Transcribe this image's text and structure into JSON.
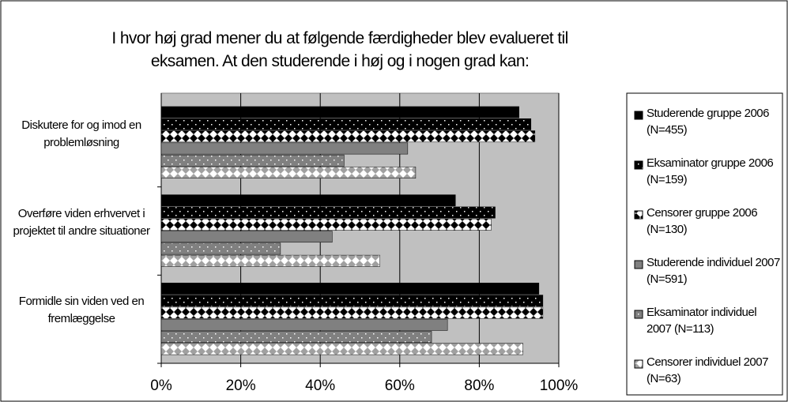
{
  "chart_data": {
    "type": "barh",
    "title": [
      "I hvor høj grad mener du at følgende færdigheder blev evalueret til",
      "eksamen. At den studerende i høj og i nogen grad kan:"
    ],
    "categories": [
      "Diskutere for og imod en problemløsning",
      "Overføre viden erhvervet i projektet til andre situationer",
      "Formidle sin viden ved en fremlæggelse"
    ],
    "series": [
      {
        "name": "Studerende gruppe 2006 (N=455)",
        "color": "#000000",
        "pattern": "solid",
        "values": [
          90,
          74,
          95
        ]
      },
      {
        "name": "Eksaminator gruppe 2006 (N=159)",
        "color": "#000000",
        "pattern": "dots",
        "values": [
          93,
          84,
          96
        ]
      },
      {
        "name": "Censorer gruppe 2006 (N=130)",
        "color": "#000000",
        "pattern": "diamonds",
        "values": [
          94,
          83,
          96
        ]
      },
      {
        "name": "Studerende individuel 2007 (N=591)",
        "color": "#808080",
        "pattern": "solid",
        "values": [
          62,
          43,
          72
        ]
      },
      {
        "name": "Eksaminator individuel 2007 (N=113)",
        "color": "#808080",
        "pattern": "dots",
        "values": [
          46,
          30,
          68
        ]
      },
      {
        "name": "Censorer individuel 2007 (N=63)",
        "color": "#a0a0a0",
        "pattern": "diamonds",
        "values": [
          64,
          55,
          91
        ]
      }
    ],
    "xlim": [
      0,
      100
    ],
    "xticks": [
      {
        "value": 0,
        "label": "0%"
      },
      {
        "value": 20,
        "label": "20%"
      },
      {
        "value": 40,
        "label": "40%"
      },
      {
        "value": 60,
        "label": "60%"
      },
      {
        "value": 80,
        "label": "80%"
      },
      {
        "value": 100,
        "label": "100%"
      }
    ],
    "grid": true,
    "legend": "right"
  }
}
